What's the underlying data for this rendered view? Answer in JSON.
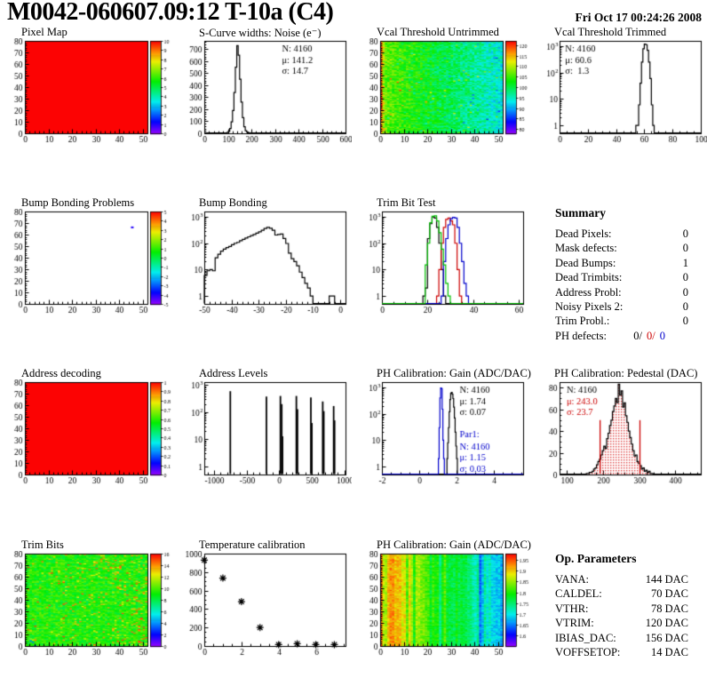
{
  "header": {
    "title": "M0042-060607.09:12 T-10a (C4)",
    "date": "Fri Oct 17 00:24:26 2008"
  },
  "colors": {
    "accent_red": "#cc0000",
    "accent_blue": "#0000cc",
    "accent_green": "#00bf00"
  },
  "chart_data": [
    {
      "id": "pixel-map",
      "title": "Pixel Map",
      "type": "heatmap",
      "x": {
        "min": 0,
        "max": 52,
        "ticks": [
          0,
          10,
          20,
          30,
          40,
          50
        ],
        "minor": 2
      },
      "y": {
        "min": 0,
        "max": 80,
        "ticks": [
          0,
          10,
          20,
          30,
          40,
          50,
          60,
          70,
          80
        ],
        "minor": 2
      },
      "z": {
        "min": 0,
        "max": 10,
        "ticks": [
          10,
          9,
          8,
          7,
          6,
          5,
          4,
          3,
          2,
          1,
          0
        ]
      },
      "fill": {
        "mode": "uniform",
        "value": 10
      }
    },
    {
      "id": "scurve-noise",
      "title": "S-Curve widths: Noise (e⁻)",
      "type": "hist",
      "x": {
        "min": 0,
        "max": 600,
        "ticks": [
          0,
          100,
          200,
          300,
          400,
          500,
          600
        ],
        "minor": 20
      },
      "y": {
        "min": 0,
        "max": 770,
        "ticks": [
          0,
          100,
          200,
          300,
          400,
          500,
          600,
          700
        ],
        "minor": 20
      },
      "series": [
        {
          "color": "#000000",
          "x0": 78,
          "dx": 6,
          "counts": [
            1,
            2,
            3,
            6,
            15,
            40,
            95,
            190,
            340,
            550,
            730,
            650,
            450,
            260,
            130,
            55,
            22,
            10,
            5,
            3,
            2,
            1,
            1,
            1
          ]
        }
      ],
      "stats": [
        {
          "fx": 0.55,
          "fy": 0.02,
          "lines": [
            {
              "t": "N: 4160",
              "c": "#000000"
            },
            {
              "t": "μ: 141.2",
              "c": "#000000"
            },
            {
              "t": "σ: 14.7",
              "c": "#000000"
            }
          ]
        }
      ]
    },
    {
      "id": "vcal-untrimmed",
      "title": "Vcal Threshold Untrimmed",
      "type": "heatmap",
      "x": {
        "min": 0,
        "max": 52,
        "ticks": [
          0,
          10,
          20,
          30,
          40,
          50
        ],
        "minor": 2
      },
      "y": {
        "min": 0,
        "max": 80,
        "ticks": [
          0,
          10,
          20,
          30,
          40,
          50,
          60,
          70,
          80
        ],
        "minor": 2
      },
      "z": {
        "min": 78,
        "max": 122,
        "ticks": [
          120,
          115,
          110,
          105,
          100,
          95,
          90,
          85,
          80
        ]
      },
      "fill": {
        "mode": "noise",
        "kind": "vcal"
      }
    },
    {
      "id": "vcal-trimmed",
      "title": "Vcal Threshold Trimmed",
      "type": "hist",
      "x": {
        "min": 0,
        "max": 100,
        "ticks": [
          0,
          20,
          40,
          60,
          80,
          100
        ],
        "minor": 5
      },
      "y": {
        "log": true,
        "min": 0.5,
        "max": 1600
      },
      "series": [
        {
          "color": "#000000",
          "x0": 54,
          "dx": 1,
          "counts": [
            1,
            1,
            6,
            40,
            250,
            800,
            1200,
            1150,
            700,
            250,
            60,
            6,
            1
          ]
        }
      ],
      "stats": [
        {
          "fx": 0.04,
          "fy": 0.02,
          "lines": [
            {
              "t": "N: 4160",
              "c": "#000000"
            },
            {
              "t": "μ: 60.6",
              "c": "#000000"
            },
            {
              "t": "σ:  1.3",
              "c": "#000000"
            }
          ]
        }
      ]
    },
    {
      "id": "bump-problems",
      "title": "Bump Bonding Problems",
      "type": "heatmap",
      "x": {
        "min": 0,
        "max": 52,
        "ticks": [
          0,
          10,
          20,
          30,
          40,
          50
        ],
        "minor": 2
      },
      "y": {
        "min": 0,
        "max": 80,
        "ticks": [
          0,
          10,
          20,
          30,
          40,
          50,
          60,
          70,
          80
        ],
        "minor": 2
      },
      "z": {
        "min": -5,
        "max": 5,
        "ticks": [
          5,
          4,
          3,
          2,
          1,
          0,
          -1,
          -2,
          -3,
          -4,
          -5
        ]
      },
      "fill": {
        "mode": "points"
      },
      "points": [
        {
          "x": 45,
          "y": 66,
          "v": -4
        }
      ]
    },
    {
      "id": "bump-bonding",
      "title": "Bump Bonding",
      "type": "hist",
      "x": {
        "min": -50,
        "max": 2,
        "ticks": [
          -50,
          -40,
          -30,
          -20,
          -10,
          0
        ],
        "minor": 2
      },
      "y": {
        "log": true,
        "min": 0.5,
        "max": 1600
      },
      "series": [
        {
          "color": "#000000",
          "x0": -50,
          "dx": 1,
          "counts": [
            6,
            9,
            10,
            9,
            28,
            38,
            50,
            60,
            68,
            75,
            88,
            100,
            108,
            125,
            140,
            158,
            175,
            196,
            215,
            240,
            272,
            310,
            360,
            400,
            370,
            310,
            205,
            215,
            225,
            152,
            98,
            42,
            26,
            20,
            14,
            8,
            5,
            3,
            2,
            1,
            0,
            0,
            0,
            0,
            0,
            0,
            1,
            1,
            0,
            0
          ]
        }
      ]
    },
    {
      "id": "trim-bit-test",
      "title": "Trim Bit Test",
      "type": "hist",
      "x": {
        "min": 0,
        "max": 62,
        "ticks": [
          0,
          20,
          40,
          60
        ],
        "minor": 5
      },
      "y": {
        "log": true,
        "min": 0.5,
        "max": 1600
      },
      "series": [
        {
          "color": "#000000",
          "x0": 18,
          "dx": 1,
          "counts": [
            1,
            2,
            150,
            550,
            1000,
            900,
            400,
            100,
            10,
            1
          ]
        },
        {
          "color": "#cc0000",
          "x0": 24,
          "dx": 1,
          "counts": [
            1,
            10,
            100,
            400,
            800,
            900,
            700,
            500,
            100,
            10,
            1
          ]
        },
        {
          "color": "#0000cc",
          "x0": 26,
          "dx": 1,
          "counts": [
            1,
            20,
            150,
            500,
            850,
            950,
            900,
            400,
            100,
            20,
            3,
            1
          ]
        },
        {
          "color": "#00bf00",
          "x0": 19,
          "dx": 1,
          "counts": [
            15,
            100,
            600,
            1050,
            1100,
            700,
            250,
            60,
            15,
            3,
            1
          ]
        }
      ]
    },
    {
      "id": "summary",
      "title": "Summary",
      "type": "text",
      "rows": [
        {
          "label": "Dead Pixels:",
          "value": "0"
        },
        {
          "label": "Mask defects:",
          "value": "0"
        },
        {
          "label": "Dead Bumps:",
          "value": "1"
        },
        {
          "label": "Dead Trimbits:",
          "value": "0"
        },
        {
          "label": "Address Probl:",
          "value": "0"
        },
        {
          "label": "Noisy Pixels 2:",
          "value": "0"
        },
        {
          "label": "Trim Probl.:",
          "value": "0"
        },
        {
          "label": "PH defects:",
          "parts": [
            "0/",
            "0/",
            "0"
          ],
          "part_colors": [
            "#000000",
            "#cc0000",
            "#0000cc"
          ]
        }
      ]
    },
    {
      "id": "address-decoding",
      "title": "Address decoding",
      "type": "heatmap",
      "x": {
        "min": 0,
        "max": 52,
        "ticks": [
          0,
          10,
          20,
          30,
          40,
          50
        ],
        "minor": 2
      },
      "y": {
        "min": 0,
        "max": 80,
        "ticks": [
          0,
          10,
          20,
          30,
          40,
          50,
          60,
          70,
          80
        ],
        "minor": 2
      },
      "z": {
        "min": 0,
        "max": 1,
        "ticks": [
          1,
          0.9,
          0.8,
          0.7,
          0.6,
          0.5,
          0.4,
          0.3,
          0.2,
          0.1,
          0
        ]
      },
      "fill": {
        "mode": "uniform",
        "value": 1
      }
    },
    {
      "id": "address-levels",
      "title": "Address Levels",
      "type": "spikes",
      "x": {
        "min": -1150,
        "max": 1020,
        "ticks": [
          -1000,
          -500,
          0,
          500,
          1000
        ],
        "minor": 100
      },
      "y": {
        "log": true,
        "min": 0.5,
        "max": 1300
      },
      "lines": [
        [
          -750,
          600
        ],
        [
          -195,
          380
        ],
        [
          20,
          400
        ],
        [
          40,
          200
        ],
        [
          52,
          13
        ],
        [
          265,
          400
        ],
        [
          282,
          130
        ],
        [
          488,
          350
        ],
        [
          503,
          40
        ],
        [
          670,
          250
        ],
        [
          686,
          110
        ],
        [
          838,
          170
        ],
        [
          852,
          50
        ]
      ]
    },
    {
      "id": "ph-gain-hist",
      "title": "PH Calibration: Gain (ADC/DAC)",
      "type": "hist",
      "x": {
        "min": -2,
        "max": 5.6,
        "ticks": [
          -2,
          0,
          2,
          4
        ],
        "minor": 0.5
      },
      "y": {
        "log": true,
        "min": 0.5,
        "max": 1600
      },
      "series": [
        {
          "color": "#000000",
          "x0": 1.5,
          "dx": 0.04,
          "counts": [
            2,
            8,
            30,
            120,
            350,
            600,
            650,
            560,
            380,
            180,
            70,
            20,
            6,
            2
          ]
        },
        {
          "color": "#0000cc",
          "x0": 1.04,
          "dx": 0.04,
          "counts": [
            2,
            30,
            400,
            950,
            900,
            150,
            10,
            2
          ]
        }
      ],
      "stats": [
        {
          "fx": 0.55,
          "fy": 0.02,
          "lines": [
            {
              "t": "N: 4160",
              "c": "#000000"
            },
            {
              "t": "μ: 1.74",
              "c": "#000000"
            },
            {
              "t": "σ: 0.07",
              "c": "#000000"
            }
          ]
        },
        {
          "fx": 0.55,
          "fy": 0.5,
          "lines": [
            {
              "t": "Par1:",
              "c": "#0000cc"
            }
          ]
        },
        {
          "fx": 0.55,
          "fy": 0.63,
          "lines": [
            {
              "t": "N: 4160",
              "c": "#0000cc"
            },
            {
              "t": "μ: 1.15",
              "c": "#0000cc"
            },
            {
              "t": "σ: 0.03",
              "c": "#0000cc"
            }
          ]
        }
      ]
    },
    {
      "id": "ph-pedestal",
      "title": "PH Calibration: Pedestal (DAC)",
      "type": "hist",
      "x": {
        "min": 80,
        "max": 470,
        "ticks": [
          100,
          200,
          300,
          400
        ],
        "minor": 20
      },
      "y": {
        "min": 0,
        "max": 85,
        "ticks": [
          0,
          20,
          40,
          60,
          80
        ],
        "minor": 5
      },
      "series": [
        {
          "color": "#000000",
          "x0": 150,
          "dx": 4,
          "fill": "dots",
          "counts": [
            0,
            1,
            1,
            2,
            2,
            3,
            5,
            6,
            9,
            12,
            14,
            18,
            22,
            26,
            24,
            33,
            38,
            45,
            50,
            58,
            63,
            70,
            66,
            83,
            73,
            77,
            62,
            66,
            54,
            48,
            40,
            34,
            28,
            22,
            17,
            18,
            12,
            10,
            8,
            5,
            6,
            3,
            4,
            2,
            3,
            1,
            1,
            0
          ]
        }
      ],
      "vlines": [
        {
          "x": 192,
          "h": 50,
          "color": "#cc0000"
        },
        {
          "x": 302,
          "h": 50,
          "color": "#cc0000"
        }
      ],
      "stats": [
        {
          "fx": 0.05,
          "fy": 0.02,
          "lines": [
            {
              "t": "N: 4160",
              "c": "#000000"
            },
            {
              "t": "μ: 243.0",
              "c": "#cc0000"
            },
            {
              "t": "σ: 23.7",
              "c": "#cc0000"
            }
          ]
        }
      ]
    },
    {
      "id": "trim-bits",
      "title": "Trim Bits",
      "type": "heatmap",
      "x": {
        "min": 0,
        "max": 52,
        "ticks": [
          0,
          10,
          20,
          30,
          40,
          50
        ],
        "minor": 2
      },
      "y": {
        "min": 0,
        "max": 80,
        "ticks": [
          0,
          10,
          20,
          30,
          40,
          50,
          60,
          70,
          80
        ],
        "minor": 2
      },
      "z": {
        "min": 0,
        "max": 16,
        "ticks": [
          16,
          14,
          12,
          10,
          8,
          6,
          4,
          2,
          0
        ]
      },
      "fill": {
        "mode": "noise",
        "kind": "trimbits"
      }
    },
    {
      "id": "temp-calibration",
      "title": "Temperature calibration",
      "type": "scatter",
      "x": {
        "min": 0,
        "max": 7.6,
        "ticks": [
          0,
          2,
          4,
          6
        ],
        "minor": 0.5
      },
      "y": {
        "min": 0,
        "max": 1000,
        "ticks": [
          0,
          200,
          400,
          600,
          800,
          1000
        ],
        "minor": 50
      },
      "points": [
        [
          0,
          930
        ],
        [
          1,
          735
        ],
        [
          2,
          480
        ],
        [
          3,
          200
        ],
        [
          4,
          15
        ],
        [
          5,
          25
        ],
        [
          6,
          15
        ],
        [
          7,
          15
        ]
      ]
    },
    {
      "id": "ph-gain-map",
      "title": "PH Calibration: Gain (ADC/DAC)",
      "type": "heatmap",
      "x": {
        "min": 0,
        "max": 52,
        "ticks": [
          0,
          10,
          20,
          30,
          40,
          50
        ],
        "minor": 2
      },
      "y": {
        "min": 0,
        "max": 80,
        "ticks": [
          0,
          10,
          20,
          30,
          40,
          50,
          60,
          70,
          80
        ],
        "minor": 2
      },
      "z": {
        "min": 1.55,
        "max": 1.98,
        "ticks": [
          1.95,
          1.9,
          1.85,
          1.8,
          1.75,
          1.7,
          1.65,
          1.6
        ]
      },
      "fill": {
        "mode": "noise",
        "kind": "phgain"
      }
    },
    {
      "id": "op-params",
      "title": "Op. Parameters",
      "type": "text",
      "rows": [
        {
          "label": "VANA:",
          "value": "144 DAC"
        },
        {
          "label": "CALDEL:",
          "value": "70 DAC"
        },
        {
          "label": "VTHR:",
          "value": "78 DAC"
        },
        {
          "label": "VTRIM:",
          "value": "120 DAC"
        },
        {
          "label": "IBIAS_DAC:",
          "value": "156 DAC"
        },
        {
          "label": "VOFFSETOP:",
          "value": "14 DAC"
        }
      ]
    }
  ]
}
